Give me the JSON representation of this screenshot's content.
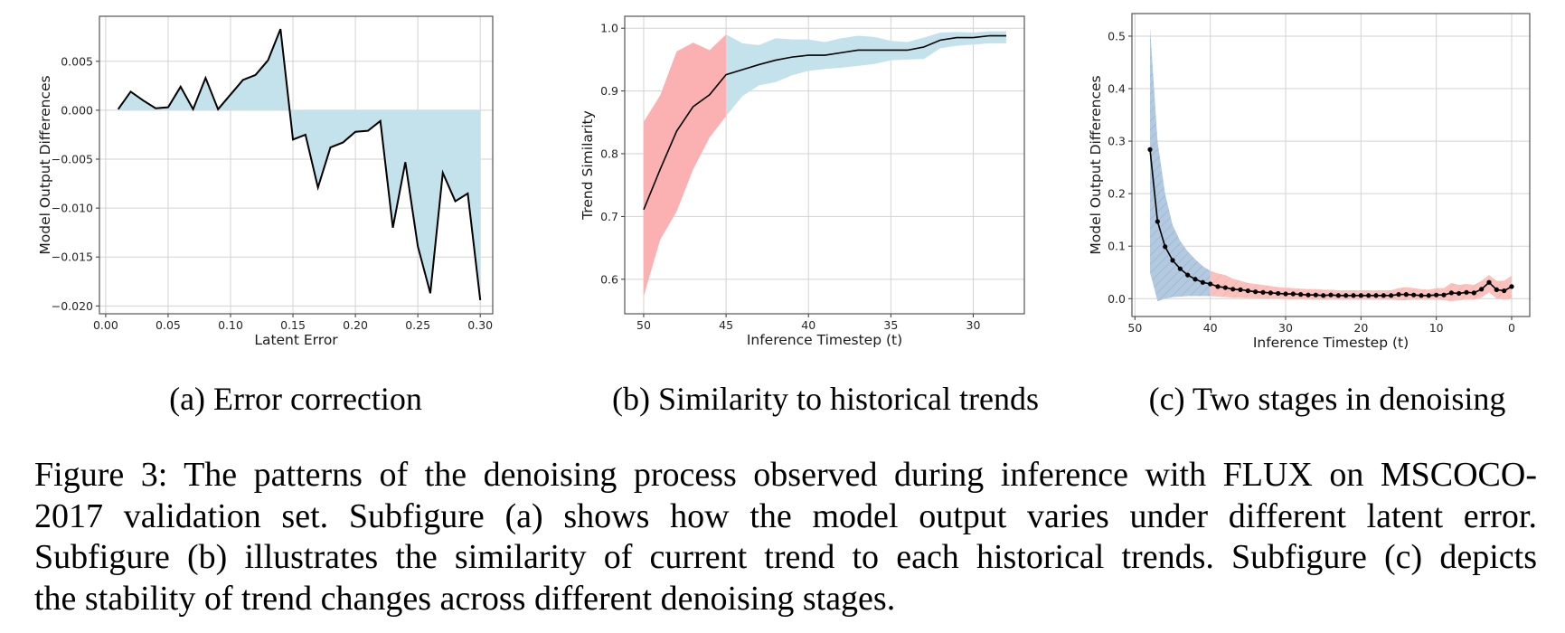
{
  "figure": {
    "subcaptions": [
      "(a) Error correction",
      "(b) Similarity to historical trends",
      "(c) Two stages in denoising"
    ],
    "caption_lines": [
      "Figure 3: The patterns of the denoising process observed during inference with FLUX on MSCOCO-",
      "2017 validation set.  Subfigure (a) shows how the model output varies under different latent error.",
      "Subfigure (b) illustrates the similarity of current trend to each historical trends. Subfigure (c) depicts",
      "the stability of trend changes across different denoising stages."
    ]
  },
  "colors": {
    "fill_blue": "#c4e2eb",
    "fill_red": "#fbb1b1",
    "hatch_blue": "#aec6de",
    "hatch_red": "#f9c3bf",
    "line": "#000000",
    "grid": "#d3d3d3"
  },
  "chart_data": [
    {
      "type": "area",
      "title": "",
      "xlabel": "Latent Error",
      "ylabel": "Model Output Differences",
      "xticks": [
        0,
        0.05,
        0.1,
        0.15,
        0.2,
        0.25,
        0.3
      ],
      "xtick_labels": [
        "0.00",
        "0.05",
        "0.10",
        "0.15",
        "0.20",
        "0.25",
        "0.30"
      ],
      "yticks": [
        0.005,
        0,
        -0.005,
        -0.01,
        -0.015,
        -0.02
      ],
      "ytick_labels": [
        "0.005",
        "0.000",
        "−0.005",
        "−0.010",
        "−0.015",
        "−0.020"
      ],
      "xlim": [
        -0.005,
        0.31
      ],
      "ylim": [
        -0.0208,
        0.0096
      ],
      "grid": true,
      "x": [
        0.01,
        0.02,
        0.03,
        0.04,
        0.05,
        0.06,
        0.07,
        0.08,
        0.09,
        0.1,
        0.11,
        0.12,
        0.13,
        0.14,
        0.15,
        0.16,
        0.17,
        0.18,
        0.19,
        0.2,
        0.21,
        0.22,
        0.23,
        0.24,
        0.25,
        0.26,
        0.27,
        0.28,
        0.29,
        0.3
      ],
      "y": [
        0.0001,
        0.0019,
        0.001,
        0.0002,
        0.0003,
        0.0024,
        0.0001,
        0.0033,
        0.0001,
        0.0016,
        0.0031,
        0.0036,
        0.0051,
        0.0083,
        -0.003,
        -0.0025,
        -0.0079,
        -0.0038,
        -0.0033,
        -0.0022,
        -0.0021,
        -0.0011,
        -0.012,
        -0.0053,
        -0.0139,
        -0.0187,
        -0.0064,
        -0.0093,
        -0.0085,
        -0.0194
      ],
      "fill": "between line and 0"
    },
    {
      "type": "line",
      "title": "",
      "xlabel": "Inference Timestep (t)",
      "ylabel": "Trend Similarity",
      "xticks": [
        50,
        45,
        40,
        35,
        30
      ],
      "xtick_labels": [
        "50",
        "45",
        "40",
        "35",
        "30"
      ],
      "yticks": [
        0.6,
        0.7,
        0.8,
        0.9,
        1.0
      ],
      "ytick_labels": [
        "0.6",
        "0.7",
        "0.8",
        "0.9",
        "1.0"
      ],
      "xlim": [
        51.15,
        26.9
      ],
      "ylim": [
        0.545,
        1.019
      ],
      "grid": true,
      "x": [
        50,
        49,
        48,
        47,
        46,
        45,
        44,
        43,
        42,
        41,
        40,
        39,
        38,
        37,
        36,
        35,
        34,
        33,
        32,
        31,
        30,
        29,
        28
      ],
      "mean": [
        0.711,
        0.775,
        0.836,
        0.875,
        0.894,
        0.926,
        0.934,
        0.942,
        0.949,
        0.954,
        0.957,
        0.957,
        0.961,
        0.965,
        0.965,
        0.965,
        0.965,
        0.97,
        0.981,
        0.985,
        0.985,
        0.988,
        0.988
      ],
      "upper": [
        0.851,
        0.893,
        0.963,
        0.977,
        0.965,
        0.99,
        0.976,
        0.973,
        0.984,
        0.982,
        0.982,
        0.978,
        0.984,
        0.988,
        0.986,
        0.98,
        0.978,
        0.985,
        0.993,
        0.994,
        0.993,
        0.995,
        0.995
      ],
      "lower": [
        0.573,
        0.663,
        0.708,
        0.775,
        0.826,
        0.86,
        0.892,
        0.909,
        0.914,
        0.925,
        0.932,
        0.935,
        0.937,
        0.94,
        0.943,
        0.949,
        0.95,
        0.951,
        0.968,
        0.972,
        0.974,
        0.976,
        0.976
      ],
      "stages": [
        {
          "name": "early",
          "from": 50,
          "to": 45,
          "color": "red"
        },
        {
          "name": "late",
          "from": 45,
          "to": 28,
          "color": "blue"
        }
      ]
    },
    {
      "type": "line",
      "title": "",
      "xlabel": "Inference Timestep (t)",
      "ylabel": "Model Output Differences",
      "xticks": [
        50,
        40,
        30,
        20,
        10,
        0
      ],
      "xtick_labels": [
        "50",
        "40",
        "30",
        "20",
        "10",
        "0"
      ],
      "yticks": [
        0.0,
        0.1,
        0.2,
        0.3,
        0.4,
        0.5
      ],
      "ytick_labels": [
        "0.0",
        "0.1",
        "0.2",
        "0.3",
        "0.4",
        "0.5"
      ],
      "xlim": [
        50.4,
        -2.4
      ],
      "ylim": [
        -0.034,
        0.543
      ],
      "grid": true,
      "markers": true,
      "x": [
        48,
        47,
        46,
        45,
        44,
        43,
        42,
        41,
        40,
        39,
        38,
        37,
        36,
        35,
        34,
        33,
        32,
        31,
        30,
        29,
        28,
        27,
        26,
        25,
        24,
        23,
        22,
        21,
        20,
        19,
        18,
        17,
        16,
        15,
        14,
        13,
        12,
        11,
        10,
        9,
        8,
        7,
        6,
        5,
        4,
        3,
        2,
        1,
        0
      ],
      "mean": [
        0.284,
        0.147,
        0.099,
        0.073,
        0.057,
        0.045,
        0.037,
        0.031,
        0.028,
        0.023,
        0.021,
        0.018,
        0.017,
        0.015,
        0.013,
        0.012,
        0.011,
        0.01,
        0.009,
        0.009,
        0.008,
        0.007,
        0.007,
        0.006,
        0.007,
        0.006,
        0.006,
        0.006,
        0.006,
        0.006,
        0.006,
        0.006,
        0.006,
        0.008,
        0.008,
        0.007,
        0.006,
        0.006,
        0.007,
        0.007,
        0.011,
        0.01,
        0.012,
        0.011,
        0.018,
        0.031,
        0.017,
        0.015,
        0.023
      ],
      "upper": [
        0.516,
        0.3,
        0.2,
        0.14,
        0.11,
        0.09,
        0.075,
        0.062,
        0.053,
        0.048,
        0.045,
        0.038,
        0.034,
        0.03,
        0.028,
        0.026,
        0.024,
        0.022,
        0.021,
        0.02,
        0.019,
        0.018,
        0.018,
        0.017,
        0.017,
        0.016,
        0.016,
        0.016,
        0.016,
        0.016,
        0.016,
        0.016,
        0.016,
        0.02,
        0.022,
        0.02,
        0.018,
        0.017,
        0.02,
        0.02,
        0.03,
        0.026,
        0.028,
        0.026,
        0.034,
        0.045,
        0.034,
        0.034,
        0.044
      ],
      "lower": [
        0.05,
        -0.005,
        0.0,
        0.003,
        0.004,
        0.005,
        0.005,
        0.005,
        0.005,
        0.004,
        0.003,
        0.002,
        0.002,
        0.001,
        0.001,
        0.0,
        0.0,
        0.0,
        -0.001,
        -0.001,
        -0.001,
        -0.002,
        -0.002,
        -0.002,
        -0.002,
        -0.002,
        -0.002,
        -0.002,
        -0.002,
        -0.002,
        -0.002,
        -0.002,
        -0.002,
        -0.003,
        -0.003,
        -0.002,
        -0.002,
        -0.002,
        -0.002,
        -0.003,
        -0.005,
        -0.003,
        -0.002,
        -0.002,
        0.002,
        0.012,
        0.0,
        -0.002,
        0.0
      ],
      "stages": [
        {
          "name": "early",
          "from": 48,
          "to": 40,
          "color": "blue",
          "hatch": true
        },
        {
          "name": "late",
          "from": 40,
          "to": 0,
          "color": "red",
          "hatch": true
        }
      ]
    }
  ]
}
